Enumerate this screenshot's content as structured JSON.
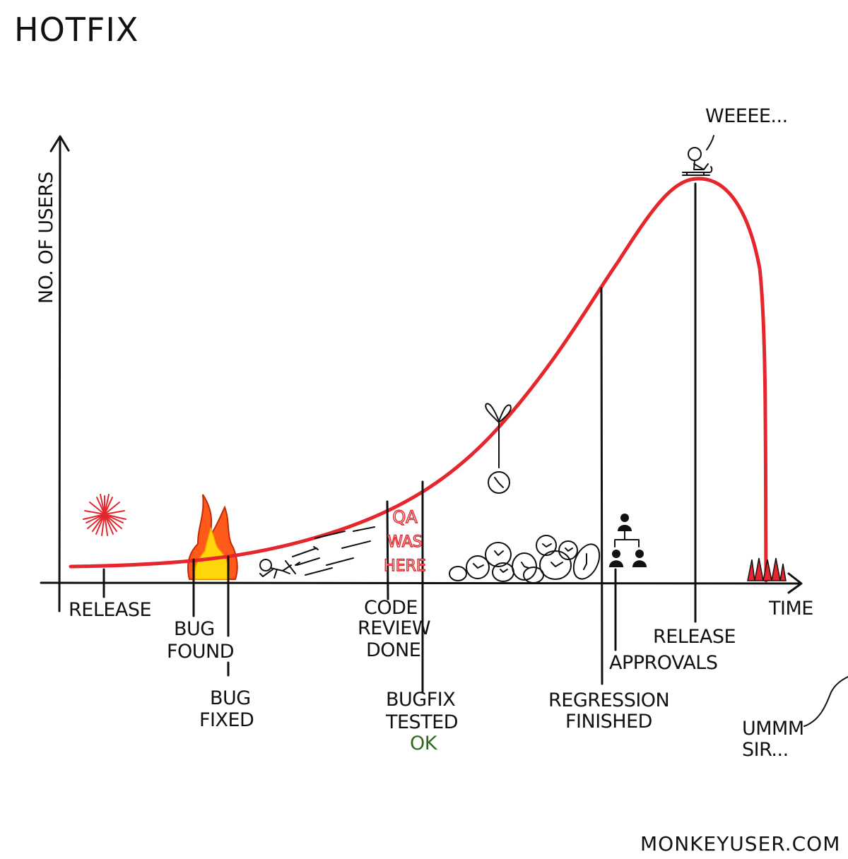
{
  "title": "HOTFIX",
  "watermark": "MONKEYUSER.COM",
  "axes": {
    "y_label": "NO. OF USERS",
    "x_label": "TIME"
  },
  "events": {
    "release_1": "RELEASE",
    "bug_found": [
      "BUG",
      "FOUND"
    ],
    "bug_fixed": [
      "BUG",
      "FIXED"
    ],
    "code_review": [
      "CODE",
      "REVIEW",
      "DONE"
    ],
    "bugfix_tested": [
      "BUGFIX",
      "TESTED"
    ],
    "ok": "OK",
    "regression": [
      "REGRESSION",
      "FINISHED"
    ],
    "approvals": "APPROVALS",
    "release_2": "RELEASE"
  },
  "speech": {
    "weeee": "WEEEE...",
    "ummm": [
      "UMMM",
      "SIR..."
    ]
  },
  "graffiti": [
    "QA",
    "WAS",
    "HERE"
  ],
  "colors": {
    "curve": "#e5262d",
    "ink": "#111111",
    "ok": "#2e6b1f",
    "fire_outer": "#ff5a1a",
    "fire_inner": "#ffd60a"
  }
}
